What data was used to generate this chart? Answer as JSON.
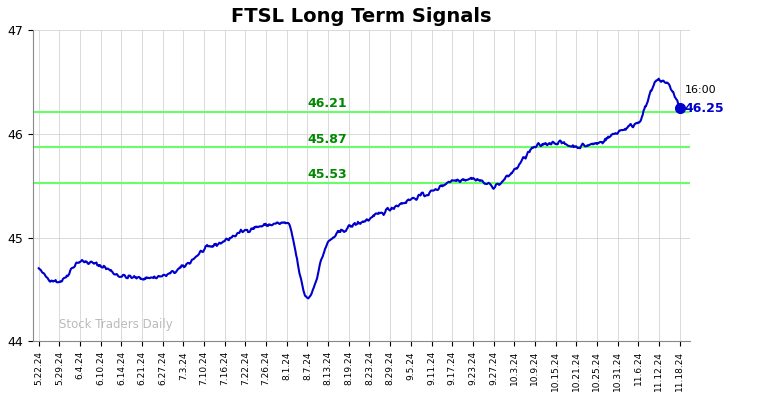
{
  "title": "FTSL Long Term Signals",
  "title_fontsize": 14,
  "title_fontweight": "bold",
  "background_color": "#ffffff",
  "line_color": "#0000cc",
  "line_width": 1.5,
  "marker_color": "#0000cc",
  "marker_size": 7,
  "ylim": [
    44.0,
    47.0
  ],
  "yticks": [
    44,
    45,
    46,
    47
  ],
  "hlines": [
    46.21,
    45.87,
    45.53
  ],
  "hline_color": "#66ff66",
  "hline_labels": [
    "46.21",
    "45.87",
    "45.53"
  ],
  "hline_label_color": "#008800",
  "watermark": "Stock Traders Daily",
  "watermark_color": "#bbbbbb",
  "grid_color": "#cccccc",
  "xtick_labels": [
    "5.22.24",
    "5.29.24",
    "6.4.24",
    "6.10.24",
    "6.14.24",
    "6.21.24",
    "6.27.24",
    "7.3.24",
    "7.10.24",
    "7.16.24",
    "7.22.24",
    "7.26.24",
    "8.1.24",
    "8.7.24",
    "8.13.24",
    "8.19.24",
    "8.23.24",
    "8.29.24",
    "9.5.24",
    "9.11.24",
    "9.17.24",
    "9.23.24",
    "9.27.24",
    "10.3.24",
    "10.9.24",
    "10.15.24",
    "10.21.24",
    "10.25.24",
    "10.31.24",
    "11.6.24",
    "11.12.24",
    "11.18.24"
  ],
  "key_prices": [
    44.7,
    44.58,
    44.77,
    44.73,
    44.63,
    44.61,
    44.63,
    44.72,
    44.88,
    44.97,
    45.07,
    45.12,
    45.14,
    44.42,
    44.95,
    45.1,
    45.18,
    45.28,
    45.37,
    45.44,
    45.55,
    45.57,
    45.5,
    45.65,
    45.87,
    45.92,
    45.88,
    45.91,
    46.02,
    46.12,
    46.52,
    46.25
  ],
  "noise_seed": 42,
  "n_interp": 800
}
